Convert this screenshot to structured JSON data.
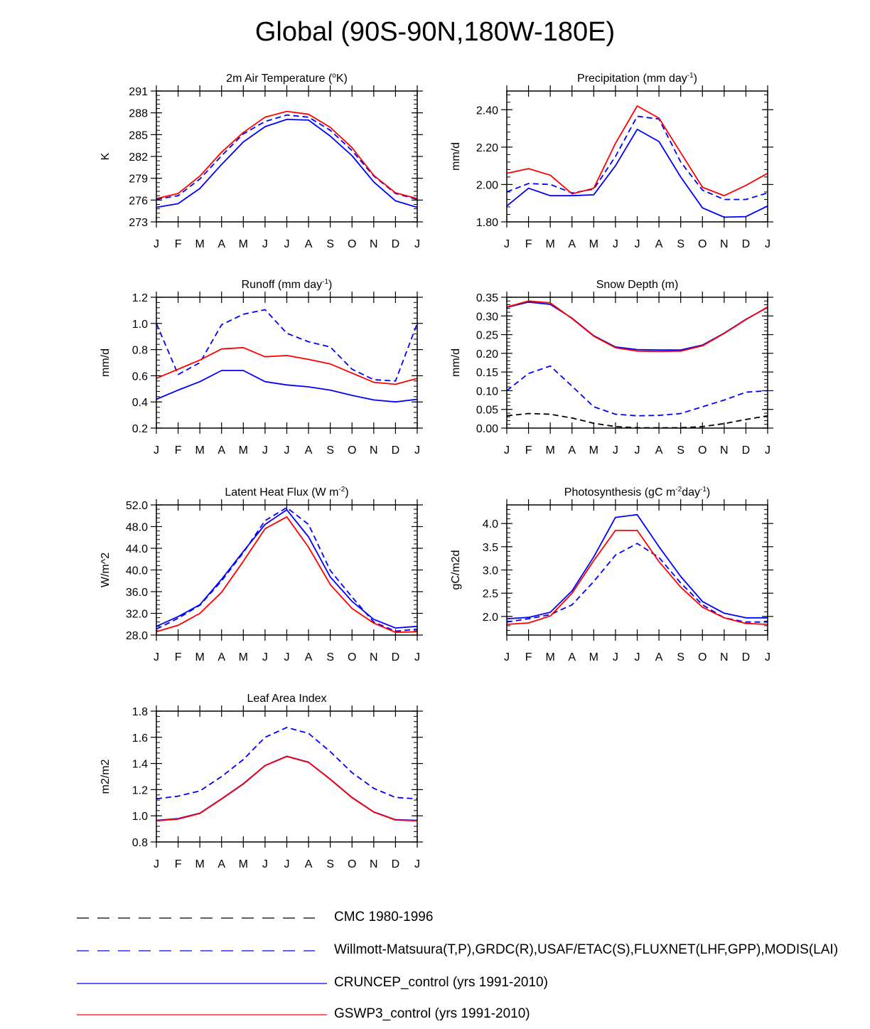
{
  "title": "Global (90S-90N,180W-180E)",
  "months": [
    "J",
    "F",
    "M",
    "A",
    "M",
    "J",
    "J",
    "A",
    "S",
    "O",
    "N",
    "D",
    "J"
  ],
  "styles": {
    "cmc": {
      "color": "#000000",
      "dash": "dash"
    },
    "obs": {
      "color": "#0000ff",
      "dash": "dash"
    },
    "cruncep": {
      "color": "#0000ff",
      "dash": "solid"
    },
    "gswp3": {
      "color": "#ff0000",
      "dash": "solid"
    }
  },
  "legend": [
    {
      "key": "cmc",
      "label": "CMC 1980-1996"
    },
    {
      "key": "obs",
      "label": "Willmott-Matsuura(T,P),GRDC(R),USAF/ETAC(S),FLUXNET(LHF,GPP),MODIS(LAI)"
    },
    {
      "key": "cruncep",
      "label": "CRUNCEP_control (yrs 1991-2010)"
    },
    {
      "key": "gswp3",
      "label": "GSWP3_control (yrs 1991-2010)"
    }
  ],
  "chart_data": [
    {
      "type": "line",
      "title": "2m Air Temperature (",
      "title_sup": "o",
      "title_after": "K)",
      "ylabel": "K",
      "ylim": [
        273,
        291
      ],
      "yticks": [
        "273",
        "276",
        "279",
        "282",
        "285",
        "288",
        "291"
      ],
      "series": [
        {
          "name": "Willmott-Matsuura",
          "style": "obs",
          "values": [
            276.1,
            276.6,
            278.9,
            282.1,
            285.1,
            286.8,
            287.7,
            287.4,
            285.6,
            282.8,
            279.3,
            276.9,
            276.1
          ]
        },
        {
          "name": "CRUNCEP_control",
          "style": "cruncep",
          "values": [
            275.0,
            275.5,
            277.6,
            280.9,
            284.0,
            286.1,
            287.1,
            287.0,
            284.8,
            282.1,
            278.5,
            275.9,
            275.0
          ]
        },
        {
          "name": "GSWP3_control",
          "style": "gswp3",
          "values": [
            276.2,
            276.9,
            279.3,
            282.6,
            285.3,
            287.4,
            288.2,
            287.8,
            286.0,
            283.2,
            279.4,
            277.0,
            276.2
          ]
        }
      ]
    },
    {
      "type": "line",
      "title": "Precipitation (mm day",
      "title_sup": "-1",
      "title_after": ")",
      "ylabel": "mm/d",
      "ylim": [
        1.8,
        2.5
      ],
      "yticks": [
        "1.80",
        "2.00",
        "2.20",
        "2.40"
      ],
      "series": [
        {
          "name": "Willmott-Matsuura",
          "style": "obs",
          "values": [
            1.96,
            2.005,
            2.0,
            1.955,
            1.975,
            2.15,
            2.365,
            2.35,
            2.12,
            1.97,
            1.92,
            1.92,
            1.955
          ]
        },
        {
          "name": "CRUNCEP_control",
          "style": "cruncep",
          "values": [
            1.885,
            1.98,
            1.94,
            1.94,
            1.945,
            2.1,
            2.295,
            2.23,
            2.04,
            1.875,
            1.825,
            1.828,
            1.885
          ]
        },
        {
          "name": "GSWP3_control",
          "style": "gswp3",
          "values": [
            2.06,
            2.085,
            2.05,
            1.95,
            1.98,
            2.22,
            2.42,
            2.355,
            2.17,
            1.985,
            1.94,
            1.995,
            2.06
          ]
        }
      ]
    },
    {
      "type": "line",
      "title": "Runoff (mm day",
      "title_sup": "-1",
      "title_after": ")",
      "ylabel": "mm/d",
      "ylim": [
        0.2,
        1.2
      ],
      "yticks": [
        "0.2",
        "0.4",
        "0.6",
        "0.8",
        "1.0",
        "1.2"
      ],
      "series": [
        {
          "name": "GRDC",
          "style": "obs",
          "values": [
            1.0,
            0.61,
            0.7,
            0.99,
            1.07,
            1.105,
            0.925,
            0.86,
            0.82,
            0.65,
            0.57,
            0.56,
            1.0
          ]
        },
        {
          "name": "CRUNCEP_control",
          "style": "cruncep",
          "values": [
            0.42,
            0.49,
            0.555,
            0.64,
            0.64,
            0.555,
            0.53,
            0.515,
            0.49,
            0.45,
            0.415,
            0.4,
            0.42
          ]
        },
        {
          "name": "GSWP3_control",
          "style": "gswp3",
          "values": [
            0.58,
            0.65,
            0.72,
            0.805,
            0.815,
            0.745,
            0.755,
            0.725,
            0.69,
            0.62,
            0.55,
            0.535,
            0.58
          ]
        }
      ]
    },
    {
      "type": "line",
      "title": "Snow Depth (m)",
      "ylabel": "mm/d",
      "ylim": [
        0,
        0.35
      ],
      "yticks": [
        "0.00",
        "0.05",
        "0.10",
        "0.15",
        "0.20",
        "0.25",
        "0.30",
        "0.35"
      ],
      "series": [
        {
          "name": "CMC",
          "style": "cmc",
          "values": [
            0.033,
            0.039,
            0.037,
            0.027,
            0.013,
            0.004,
            0.001,
            0.001,
            0.001,
            0.004,
            0.012,
            0.023,
            0.033
          ]
        },
        {
          "name": "USAF/ETAC",
          "style": "obs",
          "values": [
            0.1,
            0.146,
            0.166,
            0.112,
            0.057,
            0.037,
            0.033,
            0.034,
            0.039,
            0.057,
            0.075,
            0.096,
            0.1
          ]
        },
        {
          "name": "CRUNCEP_control",
          "style": "cruncep",
          "values": [
            0.323,
            0.337,
            0.331,
            0.294,
            0.247,
            0.217,
            0.21,
            0.209,
            0.209,
            0.222,
            0.254,
            0.291,
            0.323
          ]
        },
        {
          "name": "GSWP3_control",
          "style": "gswp3",
          "values": [
            0.324,
            0.34,
            0.335,
            0.293,
            0.246,
            0.215,
            0.206,
            0.205,
            0.206,
            0.22,
            0.253,
            0.29,
            0.324
          ]
        }
      ]
    },
    {
      "type": "line",
      "title": "Latent Heat Flux (W m",
      "title_sup": "-2",
      "title_after": ")",
      "ylabel": "W/m^2",
      "ylim": [
        28,
        52
      ],
      "yticks": [
        "28.0",
        "32.0",
        "36.0",
        "40.0",
        "44.0",
        "48.0",
        "52.0"
      ],
      "series": [
        {
          "name": "FLUXNET",
          "style": "obs",
          "values": [
            29.1,
            31.1,
            33.5,
            38.0,
            43.2,
            49.1,
            51.5,
            48.4,
            39.9,
            35.0,
            30.4,
            28.7,
            29.1
          ]
        },
        {
          "name": "CRUNCEP_control",
          "style": "cruncep",
          "values": [
            29.6,
            31.4,
            33.6,
            38.3,
            43.4,
            48.4,
            51.1,
            46.1,
            38.7,
            34.2,
            30.9,
            29.3,
            29.6
          ]
        },
        {
          "name": "GSWP3_control",
          "style": "gswp3",
          "values": [
            28.6,
            29.8,
            32.0,
            35.9,
            41.6,
            47.6,
            49.8,
            44.2,
            37.3,
            32.9,
            30.2,
            28.5,
            28.6
          ]
        }
      ]
    },
    {
      "type": "line",
      "title": "Photosynthesis (gC m",
      "title_sup": "-2",
      "title_after": "day",
      "title_sup2": "-1",
      "title_after2": ")",
      "ylabel": "gC/m2d",
      "ylim": [
        1.6,
        4.4
      ],
      "yticks": [
        "2.0",
        "2.5",
        "3.0",
        "3.5",
        "4.0"
      ],
      "series": [
        {
          "name": "FLUXNET",
          "style": "obs",
          "values": [
            1.88,
            1.95,
            2.04,
            2.25,
            2.75,
            3.32,
            3.57,
            3.27,
            2.72,
            2.25,
            1.97,
            1.88,
            1.88
          ]
        },
        {
          "name": "CRUNCEP_control",
          "style": "cruncep",
          "values": [
            1.95,
            1.98,
            2.09,
            2.55,
            3.28,
            4.13,
            4.19,
            3.5,
            2.86,
            2.32,
            2.07,
            1.97,
            1.97
          ]
        },
        {
          "name": "GSWP3_control",
          "style": "gswp3",
          "values": [
            1.83,
            1.86,
            2.01,
            2.5,
            3.2,
            3.85,
            3.85,
            3.18,
            2.63,
            2.2,
            1.97,
            1.85,
            1.83
          ]
        }
      ]
    },
    {
      "type": "line",
      "title": "Leaf Area Index",
      "ylabel": "m2/m2",
      "ylim": [
        0.8,
        1.8
      ],
      "yticks": [
        "0.8",
        "1.0",
        "1.2",
        "1.4",
        "1.6",
        "1.8"
      ],
      "series": [
        {
          "name": "MODIS",
          "style": "obs",
          "values": [
            1.13,
            1.15,
            1.19,
            1.3,
            1.43,
            1.6,
            1.675,
            1.63,
            1.49,
            1.33,
            1.21,
            1.14,
            1.13
          ]
        },
        {
          "name": "CRUNCEP_control",
          "style": "cruncep",
          "values": [
            0.965,
            0.978,
            1.02,
            1.13,
            1.245,
            1.385,
            1.455,
            1.41,
            1.28,
            1.14,
            1.03,
            0.97,
            0.965
          ]
        },
        {
          "name": "GSWP3_control",
          "style": "gswp3",
          "values": [
            0.962,
            0.975,
            1.018,
            1.128,
            1.243,
            1.383,
            1.453,
            1.408,
            1.278,
            1.138,
            1.028,
            0.968,
            0.962
          ]
        }
      ]
    }
  ]
}
